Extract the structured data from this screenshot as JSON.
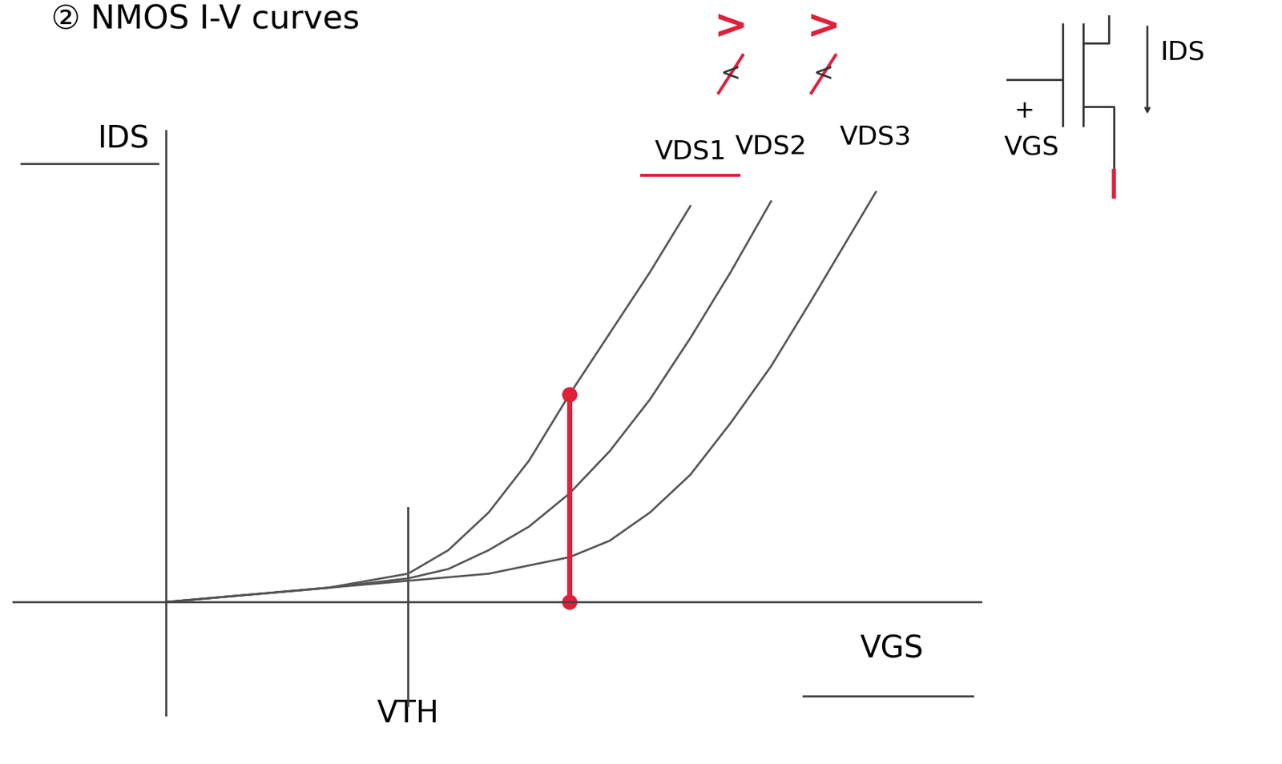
{
  "chart_data": {
    "type": "line",
    "title": "② NMOS I-V curves",
    "x_label": "VGS",
    "y_label": "IDS",
    "xlim": [
      -1.9,
      10.1
    ],
    "ylim": [
      -2.4,
      10
    ],
    "xticks": [
      {
        "value": 3,
        "label": "VTH"
      }
    ],
    "yticks": [],
    "tick_labels": "x",
    "grid": false,
    "series": [
      {
        "name": "VDS1",
        "color": "#555555",
        "x": [
          0,
          1,
          2,
          3,
          3.5,
          4,
          4.5,
          5,
          5.5,
          6,
          6.5
        ],
        "values": [
          0,
          0.15,
          0.3,
          0.6,
          1.1,
          1.9,
          3.0,
          4.4,
          5.7,
          7.0,
          8.4
        ]
      },
      {
        "name": "VDS2",
        "color": "#555555",
        "x": [
          0,
          1,
          2,
          3,
          3.5,
          4,
          4.5,
          5,
          5.5,
          6,
          6.5,
          7,
          7.5
        ],
        "values": [
          0,
          0.15,
          0.3,
          0.5,
          0.7,
          1.1,
          1.6,
          2.3,
          3.2,
          4.3,
          5.6,
          7.0,
          8.5
        ]
      },
      {
        "name": "VDS3",
        "color": "#555555",
        "x": [
          0,
          1,
          2,
          3,
          4,
          5,
          5.5,
          6,
          6.5,
          7,
          7.5,
          8,
          8.8
        ],
        "values": [
          0,
          0.15,
          0.3,
          0.45,
          0.6,
          0.95,
          1.3,
          1.9,
          2.7,
          3.8,
          5.0,
          6.4,
          8.7
        ]
      }
    ],
    "comparisons": [
      {
        "text": ">",
        "struck": "<",
        "color": "#e0203a"
      },
      {
        "text": ">",
        "struck": "<",
        "color": "#e0203a"
      }
    ],
    "highlight": {
      "x": 5,
      "y": [
        0,
        4.4
      ],
      "color": "#e0203a"
    },
    "symbol": {
      "gate_label": "VGS",
      "plus": "+",
      "current_label": "IDS"
    }
  }
}
